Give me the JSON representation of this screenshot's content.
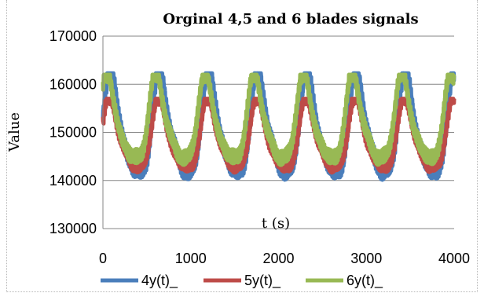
{
  "chart_data": {
    "type": "line",
    "title": "Orginal 4,5 and 6 blades signals",
    "xlabel": "t (s)",
    "ylabel": "Value",
    "xlim": [
      0,
      4000
    ],
    "ylim": [
      130000,
      170000
    ],
    "x_ticks": [
      "0",
      "1000",
      "2000",
      "3000",
      "4000"
    ],
    "y_ticks": [
      "130000",
      "140000",
      "150000",
      "160000",
      "170000"
    ],
    "grid": "horizontal",
    "legend_position": "bottom",
    "period": 560,
    "series": [
      {
        "name": "4y(t)_",
        "color": "#4a7ebb",
        "min": 137500,
        "max": 162300,
        "first_peak_x": 100
      },
      {
        "name": "5y(t)_",
        "color": "#be4b48",
        "min": 139800,
        "max": 157000,
        "first_peak_x": 90
      },
      {
        "name": "6y(t)_",
        "color": "#98b954",
        "min": 141000,
        "max": 162000,
        "first_peak_x": 60
      }
    ]
  }
}
